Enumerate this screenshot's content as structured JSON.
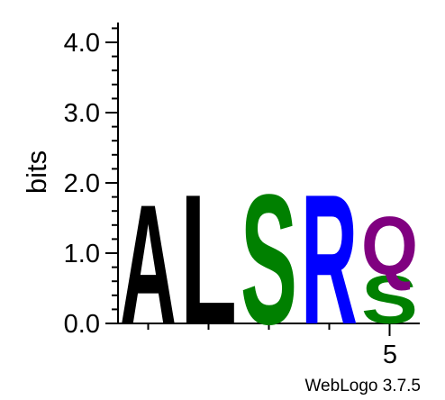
{
  "chart_data": {
    "type": "sequence-logo",
    "ylabel": "bits",
    "ylim": [
      0,
      4.3
    ],
    "yticks": [
      "0.0",
      "1.0",
      "2.0",
      "3.0",
      "4.0"
    ],
    "x_tick_label": "5",
    "credit": "WebLogo 3.7.5",
    "columns": [
      {
        "position": 1,
        "stack": [
          {
            "letter": "A",
            "bits": 1.75,
            "color": "#000000"
          }
        ]
      },
      {
        "position": 2,
        "stack": [
          {
            "letter": "L",
            "bits": 1.9,
            "color": "#000000"
          }
        ]
      },
      {
        "position": 3,
        "stack": [
          {
            "letter": "S",
            "bits": 1.9,
            "color": "#008000"
          }
        ]
      },
      {
        "position": 4,
        "stack": [
          {
            "letter": "R",
            "bits": 1.9,
            "color": "#0000ff"
          }
        ]
      },
      {
        "position": 5,
        "stack": [
          {
            "letter": "S",
            "bits": 0.7,
            "color": "#008000"
          },
          {
            "letter": "Q",
            "bits": 0.85,
            "color": "#800080"
          }
        ]
      }
    ]
  }
}
